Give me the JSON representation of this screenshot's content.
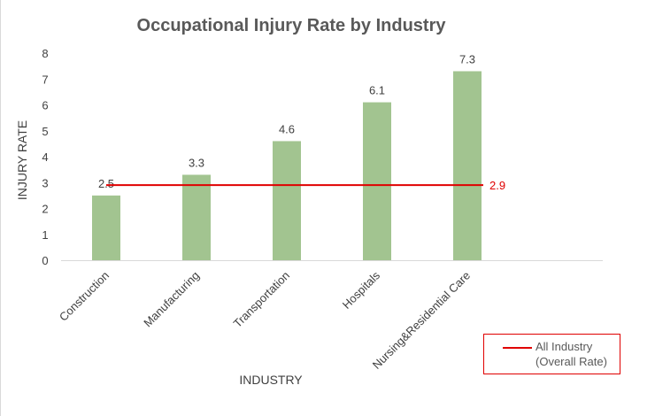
{
  "chart_data": {
    "type": "bar",
    "title": "Occupational Injury Rate by Industry",
    "xlabel": "INDUSTRY",
    "ylabel": "INJURY RATE",
    "ylim": [
      0,
      8
    ],
    "yticks": [
      "0",
      "1",
      "2",
      "3",
      "4",
      "5",
      "6",
      "7",
      "8"
    ],
    "categories": [
      "Construction",
      "Manufacturing",
      "Transportation",
      "Hospitals",
      "Nursing&Residential Care"
    ],
    "values": [
      2.5,
      3.3,
      4.6,
      6.1,
      7.3
    ],
    "value_labels": [
      "2.5",
      "3.3",
      "4.6",
      "6.1",
      "7.3"
    ],
    "bar_color": "#a2c490",
    "reference_line": {
      "name": "All Industry (Overall Rate)",
      "value": 2.9,
      "label": "2.9",
      "color": "#e00000"
    },
    "legend": {
      "line1": "All Industry",
      "line2": "(Overall Rate)",
      "placement": "bottom-right"
    },
    "grid": false
  }
}
